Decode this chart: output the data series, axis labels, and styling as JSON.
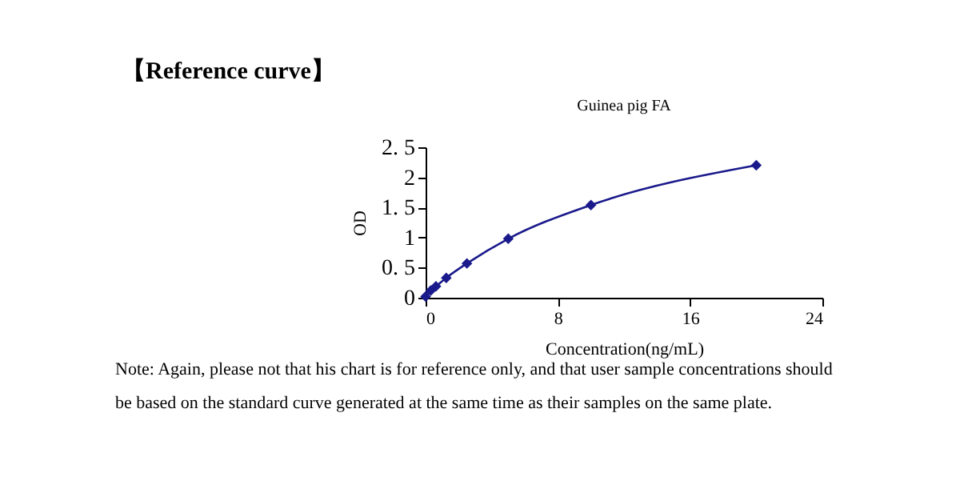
{
  "chart_data": {
    "type": "line",
    "title": "【Reference curve】",
    "subtitle": "Guinea pig FA",
    "xlabel": "Concentration(ng/mL)",
    "ylabel": "OD",
    "x": [
      0,
      0.3125,
      0.625,
      1.25,
      2.5,
      5,
      10,
      20
    ],
    "series": [
      {
        "color": "#1a1a8c",
        "values": [
          0.02,
          0.12,
          0.19,
          0.33,
          0.57,
          0.98,
          1.54,
          2.2
        ]
      }
    ],
    "xlim": [
      0,
      24
    ],
    "xticks": [
      0,
      8,
      16,
      24
    ],
    "ylim": [
      0,
      2.5
    ],
    "yticks": [
      0,
      {
        "value": 0.5,
        "label": "0. 5"
      },
      1,
      {
        "value": 1.5,
        "label": "1. 5"
      },
      2,
      {
        "value": 2.5,
        "label": "2. 5"
      }
    ],
    "marker": "diamond",
    "line_style": "solid",
    "grid": false,
    "legend": false,
    "annotations": [
      "Note: Again, please not that his chart is for reference only, and that user sample concentrations should be based on the standard curve generated at the same time as their samples on the same plate."
    ]
  }
}
